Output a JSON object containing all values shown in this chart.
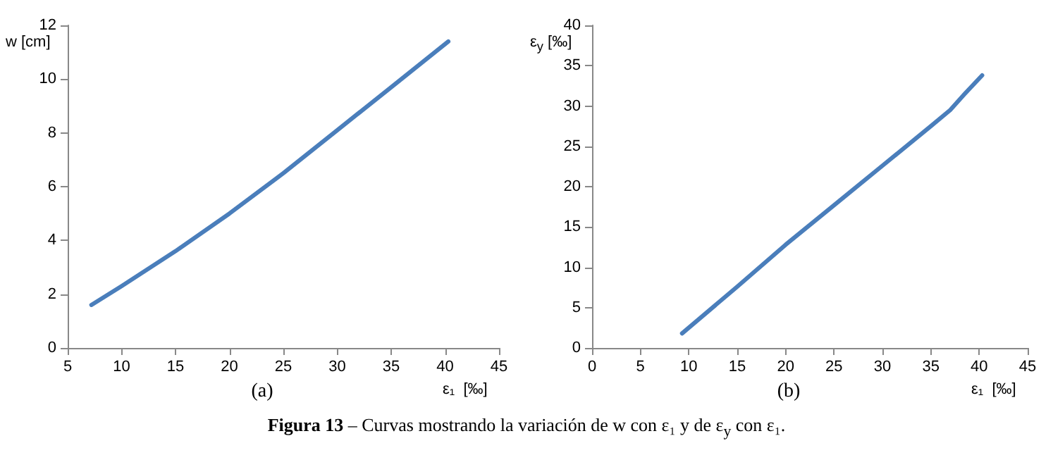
{
  "chart_data": [
    {
      "type": "line",
      "title": "(a)",
      "xlabel": "ε₁  [‰]",
      "ylabel": "w [cm]",
      "xlim": [
        5,
        45
      ],
      "xticks": [
        5,
        10,
        15,
        20,
        25,
        30,
        35,
        40,
        45
      ],
      "ylim": [
        0,
        12
      ],
      "yticks": [
        0,
        2,
        4,
        6,
        8,
        10,
        12
      ],
      "grid": false,
      "marker": "none",
      "line_style": "solid",
      "series": [
        {
          "color": "#4a7ebb",
          "x": [
            7.2,
            10,
            15,
            20,
            25,
            30,
            35,
            40.3
          ],
          "values": [
            1.6,
            2.3,
            3.6,
            5.0,
            6.5,
            8.1,
            9.7,
            11.4
          ]
        }
      ],
      "annotations": [
        "Figura 13 – Curvas mostrando la variación de w con ε₁ y de ε$_{y}$ con ε₁."
      ]
    },
    {
      "type": "line",
      "title": "(b)",
      "xlabel": "ε₁  [‰]",
      "ylabel": "ε$_{y}$  [‰]",
      "xlim": [
        0,
        45
      ],
      "xticks": [
        0,
        5,
        10,
        15,
        20,
        25,
        30,
        35,
        40,
        45
      ],
      "ylim": [
        0,
        40
      ],
      "yticks": [
        0,
        5,
        10,
        15,
        20,
        25,
        30,
        35,
        40
      ],
      "grid": false,
      "marker": "none",
      "line_style": "solid",
      "series": [
        {
          "color": "#4a7ebb",
          "x": [
            9.3,
            15,
            20,
            25,
            30,
            35,
            37,
            38.5,
            40.3
          ],
          "values": [
            1.8,
            7.6,
            12.8,
            17.7,
            22.6,
            27.5,
            29.5,
            31.5,
            33.8
          ]
        }
      ]
    }
  ]
}
